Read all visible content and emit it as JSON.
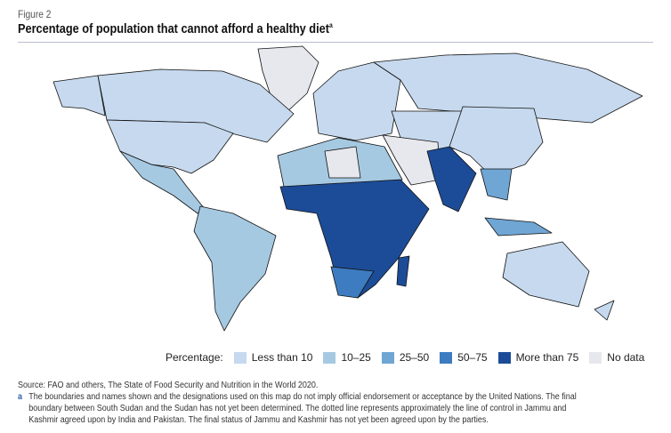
{
  "figure_label": "Figure 2",
  "title": "Percentage of population that cannot afford a healthy diet",
  "title_note_marker": "a",
  "legend": {
    "label": "Percentage:",
    "items": [
      {
        "label": "Less than 10",
        "color": "#c6d9ee"
      },
      {
        "label": "10–25",
        "color": "#a6c9e2"
      },
      {
        "label": "25–50",
        "color": "#6fa6d4"
      },
      {
        "label": "50–75",
        "color": "#3d7cc0"
      },
      {
        "label": "More than 75",
        "color": "#1c4c97"
      },
      {
        "label": "No data",
        "color": "#e6e8ee"
      }
    ]
  },
  "source": "Source: FAO and others, The State of Food Security and Nutrition in the World 2020.",
  "note": {
    "marker": "a",
    "text": "The boundaries and names shown and the designations used on this map do not imply official endorsement or acceptance by the United Nations. The final boundary between South Sudan and the Sudan has not yet been determined. The dotted line represents approximately the line of control in Jammu and Kashmir agreed upon by India and Pakistan. The final status of Jammu and Kashmir has not yet been agreed upon by the parties."
  }
}
